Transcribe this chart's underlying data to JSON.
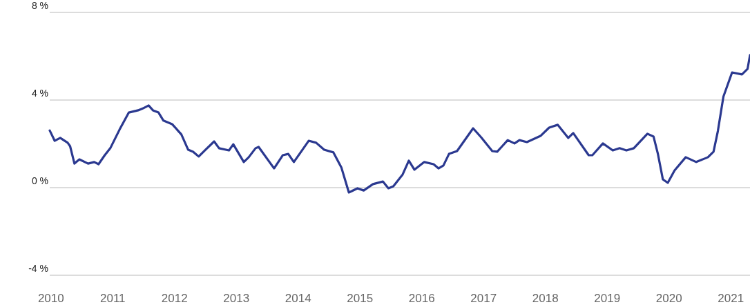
{
  "chart_data": {
    "type": "line",
    "x": [
      2009.98,
      2010.06,
      2010.15,
      2010.27,
      2010.31,
      2010.38,
      2010.46,
      2010.6,
      2010.7,
      2010.77,
      2010.87,
      2010.96,
      2011.11,
      2011.26,
      2011.41,
      2011.49,
      2011.58,
      2011.65,
      2011.74,
      2011.82,
      2011.96,
      2012.11,
      2012.22,
      2012.3,
      2012.39,
      2012.5,
      2012.64,
      2012.72,
      2012.88,
      2012.95,
      2013.12,
      2013.2,
      2013.31,
      2013.36,
      2013.61,
      2013.75,
      2013.84,
      2013.93,
      2014.17,
      2014.29,
      2014.42,
      2014.57,
      2014.7,
      2014.82,
      2014.96,
      2015.06,
      2015.21,
      2015.37,
      2015.46,
      2015.54,
      2015.69,
      2015.79,
      2015.88,
      2016.04,
      2016.19,
      2016.27,
      2016.35,
      2016.44,
      2016.57,
      2016.83,
      2016.96,
      2017.14,
      2017.22,
      2017.3,
      2017.39,
      2017.5,
      2017.58,
      2017.7,
      2017.92,
      2018.06,
      2018.2,
      2018.37,
      2018.45,
      2018.7,
      2018.76,
      2018.93,
      2019.09,
      2019.2,
      2019.31,
      2019.43,
      2019.65,
      2019.75,
      2019.82,
      2019.9,
      2019.98,
      2020.09,
      2020.27,
      2020.44,
      2020.63,
      2020.72,
      2020.79,
      2020.88,
      2021.02,
      2021.18,
      2021.27,
      2021.31
    ],
    "series": [
      {
        "color": "#2b3990",
        "values": [
          2.61,
          2.14,
          2.27,
          2.05,
          1.89,
          1.1,
          1.29,
          1.1,
          1.17,
          1.07,
          1.48,
          1.8,
          2.65,
          3.43,
          3.53,
          3.62,
          3.75,
          3.53,
          3.43,
          3.06,
          2.9,
          2.43,
          1.73,
          1.64,
          1.42,
          1.73,
          2.11,
          1.8,
          1.7,
          1.98,
          1.17,
          1.39,
          1.8,
          1.86,
          0.88,
          1.48,
          1.54,
          1.17,
          2.14,
          2.05,
          1.73,
          1.61,
          0.91,
          -0.22,
          -0.03,
          -0.13,
          0.16,
          0.28,
          -0.03,
          0.06,
          0.6,
          1.23,
          0.82,
          1.17,
          1.07,
          0.88,
          1.01,
          1.54,
          1.67,
          2.71,
          2.3,
          1.67,
          1.64,
          1.89,
          2.17,
          2.02,
          2.17,
          2.08,
          2.36,
          2.74,
          2.87,
          2.27,
          2.49,
          1.48,
          1.48,
          2.02,
          1.7,
          1.8,
          1.7,
          1.8,
          2.46,
          2.33,
          1.54,
          0.38,
          0.22,
          0.79,
          1.39,
          1.17,
          1.39,
          1.64,
          2.58,
          4.16,
          5.26,
          5.17,
          5.42,
          6.05
        ]
      }
    ],
    "xlim": [
      2009.98,
      2021.31
    ],
    "xticks": [
      2010,
      2011,
      2012,
      2013,
      2014,
      2015,
      2016,
      2017,
      2018,
      2019,
      2020,
      2021
    ],
    "ylim": [
      -4,
      8
    ],
    "yticks": [
      {
        "value": -4,
        "label": "-4 %"
      },
      {
        "value": 0,
        "label": "0 %"
      },
      {
        "value": 4,
        "label": "4 %"
      },
      {
        "value": 8,
        "label": "8 %"
      }
    ],
    "grid": "y",
    "line_style": "solid"
  }
}
